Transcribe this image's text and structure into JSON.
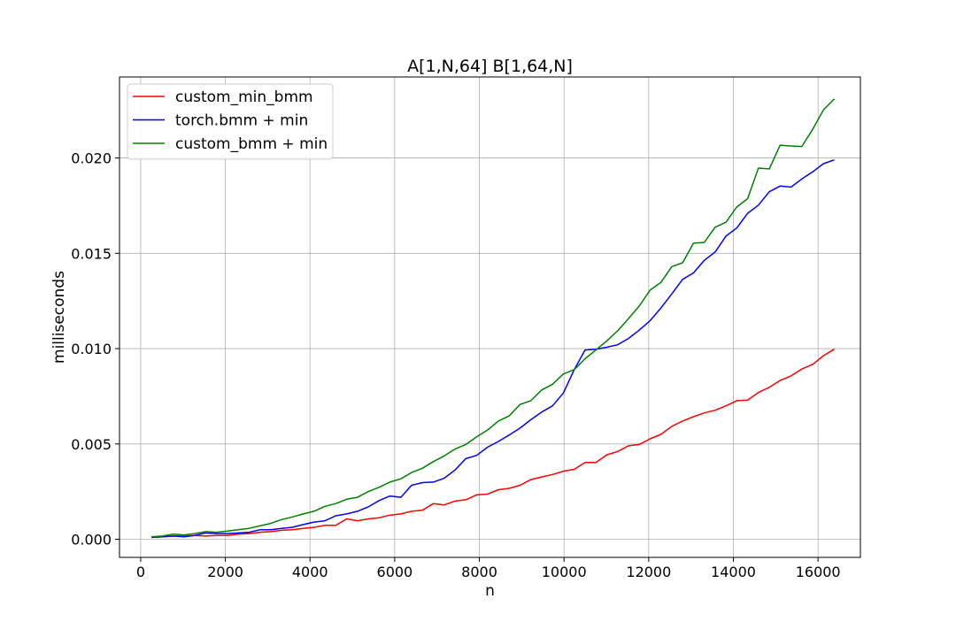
{
  "chart_data": {
    "type": "line",
    "title": "A[1,N,64] B[1,64,N]",
    "xlabel": "n",
    "ylabel": "milliseconds",
    "xlim": [
      -500,
      17000
    ],
    "ylim": [
      -0.00095,
      0.02425
    ],
    "xticks": [
      0,
      2000,
      4000,
      6000,
      8000,
      10000,
      12000,
      14000,
      16000
    ],
    "xtick_labels": [
      "0",
      "2000",
      "4000",
      "6000",
      "8000",
      "10000",
      "12000",
      "14000",
      "16000"
    ],
    "yticks": [
      0.0,
      0.005,
      0.01,
      0.015,
      0.02
    ],
    "ytick_labels": [
      "0.000",
      "0.005",
      "0.010",
      "0.015",
      "0.020"
    ],
    "grid": true,
    "legend_position": "upper-left",
    "series": [
      {
        "name": "custom_min_bmm",
        "color": "#ff0000",
        "points": [
          [
            256,
            0.0001
          ],
          [
            512,
            0.00013
          ],
          [
            768,
            0.00017
          ],
          [
            1024,
            0.00017
          ],
          [
            1280,
            0.0002
          ],
          [
            1536,
            0.00017
          ],
          [
            1792,
            0.0002
          ],
          [
            2048,
            0.0002
          ],
          [
            2304,
            0.00027
          ],
          [
            2560,
            0.0003
          ],
          [
            2816,
            0.00037
          ],
          [
            3072,
            0.0004
          ],
          [
            3328,
            0.00047
          ],
          [
            3584,
            0.0005
          ],
          [
            3840,
            0.00057
          ],
          [
            4096,
            0.00063
          ],
          [
            4352,
            0.00073
          ],
          [
            4608,
            0.00073
          ],
          [
            4864,
            0.00107
          ],
          [
            5120,
            0.00097
          ],
          [
            5376,
            0.00107
          ],
          [
            5632,
            0.00113
          ],
          [
            5888,
            0.00127
          ],
          [
            6144,
            0.00133
          ],
          [
            6400,
            0.00147
          ],
          [
            6656,
            0.00153
          ],
          [
            6912,
            0.00187
          ],
          [
            7168,
            0.0018
          ],
          [
            7424,
            0.002
          ],
          [
            7680,
            0.00207
          ],
          [
            7936,
            0.00233
          ],
          [
            8192,
            0.00237
          ],
          [
            8448,
            0.0026
          ],
          [
            8704,
            0.00267
          ],
          [
            8960,
            0.00283
          ],
          [
            9216,
            0.00313
          ],
          [
            9472,
            0.00327
          ],
          [
            9728,
            0.0034
          ],
          [
            9984,
            0.00357
          ],
          [
            10240,
            0.00367
          ],
          [
            10496,
            0.00403
          ],
          [
            10752,
            0.00403
          ],
          [
            11008,
            0.00443
          ],
          [
            11264,
            0.0046
          ],
          [
            11520,
            0.0049
          ],
          [
            11776,
            0.00497
          ],
          [
            12032,
            0.00527
          ],
          [
            12288,
            0.0055
          ],
          [
            12544,
            0.00593
          ],
          [
            12800,
            0.0062
          ],
          [
            13056,
            0.00643
          ],
          [
            13312,
            0.00663
          ],
          [
            13568,
            0.00677
          ],
          [
            13824,
            0.007
          ],
          [
            14080,
            0.00727
          ],
          [
            14336,
            0.0073
          ],
          [
            14592,
            0.0077
          ],
          [
            14848,
            0.00797
          ],
          [
            15104,
            0.00833
          ],
          [
            15360,
            0.00857
          ],
          [
            15616,
            0.00893
          ],
          [
            15872,
            0.00917
          ],
          [
            16128,
            0.00963
          ],
          [
            16384,
            0.00997
          ]
        ]
      },
      {
        "name": "torch.bmm + min",
        "color": "#0000ff",
        "points": [
          [
            256,
            0.0001
          ],
          [
            512,
            0.00013
          ],
          [
            768,
            0.00017
          ],
          [
            1024,
            0.00013
          ],
          [
            1280,
            0.0002
          ],
          [
            1536,
            0.00033
          ],
          [
            1792,
            0.0003
          ],
          [
            2048,
            0.0003
          ],
          [
            2304,
            0.00033
          ],
          [
            2560,
            0.00037
          ],
          [
            2816,
            0.0005
          ],
          [
            3072,
            0.0005
          ],
          [
            3328,
            0.00057
          ],
          [
            3584,
            0.00063
          ],
          [
            3840,
            0.00077
          ],
          [
            4096,
            0.0009
          ],
          [
            4352,
            0.00097
          ],
          [
            4608,
            0.00123
          ],
          [
            4864,
            0.00133
          ],
          [
            5120,
            0.00147
          ],
          [
            5376,
            0.0017
          ],
          [
            5632,
            0.00203
          ],
          [
            5888,
            0.00227
          ],
          [
            6144,
            0.0022
          ],
          [
            6400,
            0.00283
          ],
          [
            6656,
            0.00297
          ],
          [
            6912,
            0.003
          ],
          [
            7168,
            0.0032
          ],
          [
            7424,
            0.00363
          ],
          [
            7680,
            0.00423
          ],
          [
            7936,
            0.0044
          ],
          [
            8192,
            0.00483
          ],
          [
            8448,
            0.00513
          ],
          [
            8704,
            0.00547
          ],
          [
            8960,
            0.00583
          ],
          [
            9216,
            0.00627
          ],
          [
            9472,
            0.00667
          ],
          [
            9728,
            0.007
          ],
          [
            9984,
            0.00767
          ],
          [
            10240,
            0.0089
          ],
          [
            10496,
            0.00993
          ],
          [
            10752,
            0.00997
          ],
          [
            11008,
            0.01007
          ],
          [
            11264,
            0.0102
          ],
          [
            11520,
            0.01053
          ],
          [
            11776,
            0.01097
          ],
          [
            12032,
            0.01147
          ],
          [
            12288,
            0.01213
          ],
          [
            12544,
            0.01287
          ],
          [
            12800,
            0.01363
          ],
          [
            13056,
            0.01397
          ],
          [
            13312,
            0.01463
          ],
          [
            13568,
            0.01507
          ],
          [
            13824,
            0.0159
          ],
          [
            14080,
            0.01633
          ],
          [
            14336,
            0.0171
          ],
          [
            14592,
            0.01753
          ],
          [
            14848,
            0.01823
          ],
          [
            15104,
            0.01853
          ],
          [
            15360,
            0.01847
          ],
          [
            15616,
            0.0189
          ],
          [
            15872,
            0.01927
          ],
          [
            16128,
            0.0197
          ],
          [
            16384,
            0.0199
          ]
        ]
      },
      {
        "name": "custom_bmm + min",
        "color": "#008000",
        "points": [
          [
            256,
            0.00013
          ],
          [
            512,
            0.00017
          ],
          [
            768,
            0.00027
          ],
          [
            1024,
            0.00023
          ],
          [
            1280,
            0.0003
          ],
          [
            1536,
            0.0004
          ],
          [
            1792,
            0.00037
          ],
          [
            2048,
            0.00043
          ],
          [
            2304,
            0.0005
          ],
          [
            2560,
            0.00057
          ],
          [
            2816,
            0.0007
          ],
          [
            3072,
            0.00083
          ],
          [
            3328,
            0.00103
          ],
          [
            3584,
            0.00117
          ],
          [
            3840,
            0.00133
          ],
          [
            4096,
            0.00147
          ],
          [
            4352,
            0.00173
          ],
          [
            4608,
            0.00187
          ],
          [
            4864,
            0.0021
          ],
          [
            5120,
            0.0022
          ],
          [
            5376,
            0.0025
          ],
          [
            5632,
            0.00273
          ],
          [
            5888,
            0.003
          ],
          [
            6144,
            0.00317
          ],
          [
            6400,
            0.0035
          ],
          [
            6656,
            0.00373
          ],
          [
            6912,
            0.00407
          ],
          [
            7168,
            0.00437
          ],
          [
            7424,
            0.00473
          ],
          [
            7680,
            0.00497
          ],
          [
            7936,
            0.00537
          ],
          [
            8192,
            0.00573
          ],
          [
            8448,
            0.0062
          ],
          [
            8704,
            0.00647
          ],
          [
            8960,
            0.00707
          ],
          [
            9216,
            0.00727
          ],
          [
            9472,
            0.00783
          ],
          [
            9728,
            0.00813
          ],
          [
            9984,
            0.00867
          ],
          [
            10240,
            0.0089
          ],
          [
            10496,
            0.00947
          ],
          [
            10752,
            0.00993
          ],
          [
            11008,
            0.0104
          ],
          [
            11264,
            0.01093
          ],
          [
            11520,
            0.01157
          ],
          [
            11776,
            0.01223
          ],
          [
            12032,
            0.01307
          ],
          [
            12288,
            0.01347
          ],
          [
            12544,
            0.0143
          ],
          [
            12800,
            0.0145
          ],
          [
            13056,
            0.01553
          ],
          [
            13312,
            0.01557
          ],
          [
            13568,
            0.01637
          ],
          [
            13824,
            0.01663
          ],
          [
            14080,
            0.01743
          ],
          [
            14336,
            0.01787
          ],
          [
            14592,
            0.01947
          ],
          [
            14848,
            0.01943
          ],
          [
            15104,
            0.02067
          ],
          [
            15360,
            0.02063
          ],
          [
            15616,
            0.0206
          ],
          [
            15872,
            0.0215
          ],
          [
            16128,
            0.02253
          ],
          [
            16384,
            0.0231
          ]
        ]
      }
    ]
  }
}
